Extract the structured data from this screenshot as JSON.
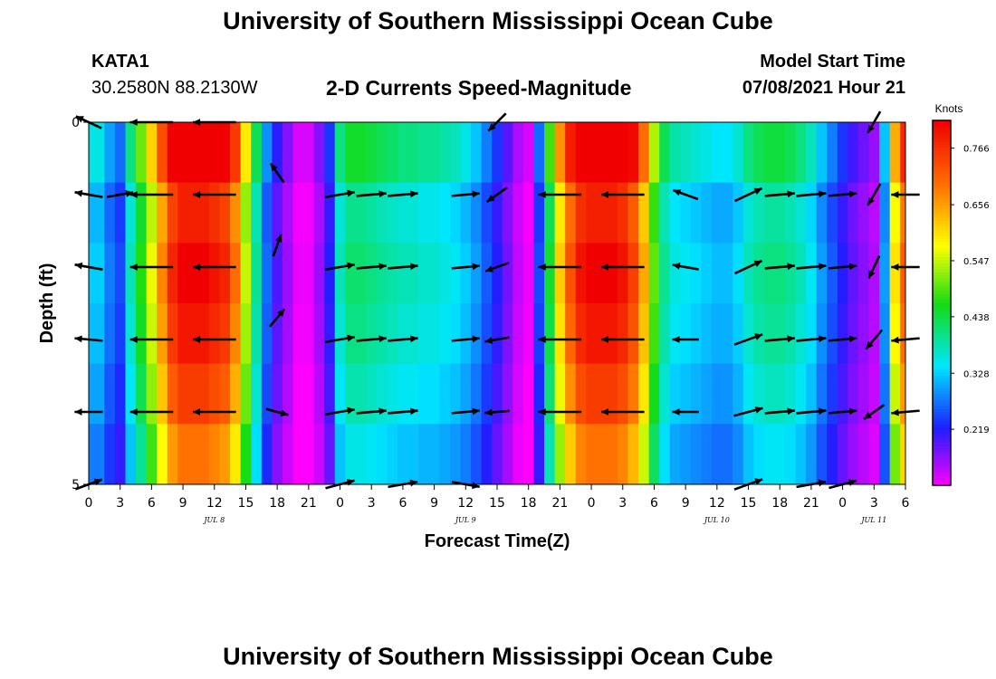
{
  "page": {
    "title": "University of Southern Mississippi Ocean Cube",
    "footer_title": "University of Southern Mississippi Ocean Cube",
    "station": "KATA1",
    "coordinates": "30.2580N  88.2130W",
    "plot_title": "2-D Currents Speed-Magnitude",
    "model_start_label": "Model Start Time",
    "model_start_value": "07/08/2021 Hour 21"
  },
  "chart_data": {
    "type": "heatmap",
    "title": "2-D Currents Speed-Magnitude",
    "xlabel": "Forecast Time(Z)",
    "ylabel": "Depth (ft)",
    "colorbar_label": "Knots",
    "colorbar_ticks": [
      "0.766",
      "0.656",
      "0.547",
      "0.438",
      "0.328",
      "0.219"
    ],
    "colorbar_values": [
      0.766,
      0.656,
      0.547,
      0.438,
      0.328,
      0.219
    ],
    "color_range": [
      0.11,
      0.82
    ],
    "y_ticks": [
      "0",
      "5"
    ],
    "ylim": [
      0,
      5
    ],
    "x_tick_labels": [
      "0",
      "3",
      "6",
      "9",
      "12",
      "15",
      "18",
      "21",
      "0",
      "3",
      "6",
      "9",
      "12",
      "15",
      "18",
      "21",
      "0",
      "3",
      "6",
      "9",
      "12",
      "15",
      "18",
      "21",
      "0",
      "3",
      "6"
    ],
    "date_labels": [
      {
        "text": "JUL 8",
        "at_tick": 4
      },
      {
        "text": "JUL 9",
        "at_tick": 12
      },
      {
        "text": "JUL 10",
        "at_tick": 20
      },
      {
        "text": "JUL 11",
        "at_tick": 25
      }
    ],
    "hours": [
      0,
      1,
      2,
      3,
      4,
      5,
      6,
      7,
      8,
      9,
      10,
      11,
      12,
      13,
      14,
      15,
      16,
      17,
      18,
      19,
      20,
      21,
      22,
      23,
      24,
      25,
      26,
      27,
      28,
      29,
      30,
      31,
      32,
      33,
      34,
      35,
      36,
      37,
      38,
      39,
      40,
      41,
      42,
      43,
      44,
      45,
      46,
      47,
      48,
      49,
      50,
      51,
      52,
      53,
      54,
      55,
      56,
      57,
      58,
      59,
      60,
      61,
      62,
      63,
      64,
      65,
      66,
      67,
      68,
      69,
      70,
      71,
      72,
      73,
      74,
      75,
      76,
      77,
      78
    ],
    "speed_profile": [
      0.33,
      0.33,
      0.28,
      0.25,
      0.38,
      0.47,
      0.57,
      0.68,
      0.78,
      0.82,
      0.82,
      0.82,
      0.8,
      0.78,
      0.7,
      0.55,
      0.4,
      0.27,
      0.2,
      0.16,
      0.12,
      0.12,
      0.16,
      0.22,
      0.38,
      0.42,
      0.42,
      0.41,
      0.4,
      0.39,
      0.38,
      0.38,
      0.37,
      0.37,
      0.36,
      0.35,
      0.33,
      0.3,
      0.26,
      0.22,
      0.18,
      0.14,
      0.12,
      0.25,
      0.45,
      0.62,
      0.73,
      0.8,
      0.82,
      0.82,
      0.82,
      0.8,
      0.75,
      0.65,
      0.5,
      0.4,
      0.36,
      0.35,
      0.34,
      0.33,
      0.32,
      0.32,
      0.34,
      0.38,
      0.4,
      0.41,
      0.41,
      0.4,
      0.38,
      0.35,
      0.3,
      0.26,
      0.22,
      0.19,
      0.17,
      0.15,
      0.3,
      0.6,
      0.72
    ],
    "depth_factors": [
      1.08,
      0.96,
      1.0,
      0.97,
      0.92,
      0.85
    ],
    "vectors": [
      {
        "hour": 0,
        "depth": 0.0,
        "angle": 155,
        "speed": 0.35
      },
      {
        "hour": 6,
        "depth": 0.0,
        "angle": 180,
        "speed": 0.78
      },
      {
        "hour": 12,
        "depth": 0.0,
        "angle": 180,
        "speed": 0.78
      },
      {
        "hour": 39,
        "depth": 0.0,
        "angle": 225,
        "speed": 0.25
      },
      {
        "hour": 75,
        "depth": 0.0,
        "angle": 240,
        "speed": 0.25
      },
      {
        "hour": 0,
        "depth": 1.0,
        "angle": 170,
        "speed": 0.35
      },
      {
        "hour": 3,
        "depth": 1.0,
        "angle": 10,
        "speed": 0.3
      },
      {
        "hour": 6,
        "depth": 1.0,
        "angle": 180,
        "speed": 0.78
      },
      {
        "hour": 12,
        "depth": 1.0,
        "angle": 180,
        "speed": 0.78
      },
      {
        "hour": 18,
        "depth": 0.7,
        "angle": 125,
        "speed": 0.2
      },
      {
        "hour": 24,
        "depth": 1.0,
        "angle": 10,
        "speed": 0.4
      },
      {
        "hour": 27,
        "depth": 1.0,
        "angle": 5,
        "speed": 0.4
      },
      {
        "hour": 30,
        "depth": 1.0,
        "angle": 5,
        "speed": 0.4
      },
      {
        "hour": 36,
        "depth": 1.0,
        "angle": 5,
        "speed": 0.35
      },
      {
        "hour": 39,
        "depth": 1.0,
        "angle": 215,
        "speed": 0.25
      },
      {
        "hour": 45,
        "depth": 1.0,
        "angle": 180,
        "speed": 0.78
      },
      {
        "hour": 51,
        "depth": 1.0,
        "angle": 180,
        "speed": 0.78
      },
      {
        "hour": 57,
        "depth": 1.0,
        "angle": 160,
        "speed": 0.3
      },
      {
        "hour": 63,
        "depth": 1.0,
        "angle": 25,
        "speed": 0.4
      },
      {
        "hour": 66,
        "depth": 1.0,
        "angle": 5,
        "speed": 0.4
      },
      {
        "hour": 69,
        "depth": 1.0,
        "angle": 5,
        "speed": 0.4
      },
      {
        "hour": 72,
        "depth": 1.0,
        "angle": 5,
        "speed": 0.35
      },
      {
        "hour": 75,
        "depth": 1.0,
        "angle": 240,
        "speed": 0.25
      },
      {
        "hour": 78,
        "depth": 1.0,
        "angle": 180,
        "speed": 0.35
      },
      {
        "hour": 0,
        "depth": 2.0,
        "angle": 170,
        "speed": 0.35
      },
      {
        "hour": 6,
        "depth": 2.0,
        "angle": 180,
        "speed": 0.78
      },
      {
        "hour": 12,
        "depth": 2.0,
        "angle": 180,
        "speed": 0.78
      },
      {
        "hour": 18,
        "depth": 1.7,
        "angle": 70,
        "speed": 0.2
      },
      {
        "hour": 24,
        "depth": 2.0,
        "angle": 10,
        "speed": 0.4
      },
      {
        "hour": 27,
        "depth": 2.0,
        "angle": 5,
        "speed": 0.4
      },
      {
        "hour": 30,
        "depth": 2.0,
        "angle": 5,
        "speed": 0.4
      },
      {
        "hour": 36,
        "depth": 2.0,
        "angle": 5,
        "speed": 0.35
      },
      {
        "hour": 39,
        "depth": 2.0,
        "angle": 200,
        "speed": 0.25
      },
      {
        "hour": 45,
        "depth": 2.0,
        "angle": 180,
        "speed": 0.78
      },
      {
        "hour": 51,
        "depth": 2.0,
        "angle": 180,
        "speed": 0.78
      },
      {
        "hour": 57,
        "depth": 2.0,
        "angle": 170,
        "speed": 0.3
      },
      {
        "hour": 63,
        "depth": 2.0,
        "angle": 25,
        "speed": 0.4
      },
      {
        "hour": 66,
        "depth": 2.0,
        "angle": 5,
        "speed": 0.4
      },
      {
        "hour": 69,
        "depth": 2.0,
        "angle": 5,
        "speed": 0.4
      },
      {
        "hour": 72,
        "depth": 2.0,
        "angle": 5,
        "speed": 0.35
      },
      {
        "hour": 75,
        "depth": 2.0,
        "angle": 245,
        "speed": 0.25
      },
      {
        "hour": 78,
        "depth": 2.0,
        "angle": 180,
        "speed": 0.35
      },
      {
        "hour": 0,
        "depth": 3.0,
        "angle": 175,
        "speed": 0.35
      },
      {
        "hour": 6,
        "depth": 3.0,
        "angle": 180,
        "speed": 0.78
      },
      {
        "hour": 12,
        "depth": 3.0,
        "angle": 180,
        "speed": 0.78
      },
      {
        "hour": 18,
        "depth": 2.7,
        "angle": 50,
        "speed": 0.2
      },
      {
        "hour": 24,
        "depth": 3.0,
        "angle": 10,
        "speed": 0.4
      },
      {
        "hour": 27,
        "depth": 3.0,
        "angle": 5,
        "speed": 0.4
      },
      {
        "hour": 30,
        "depth": 3.0,
        "angle": 5,
        "speed": 0.4
      },
      {
        "hour": 36,
        "depth": 3.0,
        "angle": 5,
        "speed": 0.35
      },
      {
        "hour": 39,
        "depth": 3.0,
        "angle": 190,
        "speed": 0.25
      },
      {
        "hour": 45,
        "depth": 3.0,
        "angle": 180,
        "speed": 0.78
      },
      {
        "hour": 51,
        "depth": 3.0,
        "angle": 180,
        "speed": 0.78
      },
      {
        "hour": 57,
        "depth": 3.0,
        "angle": 180,
        "speed": 0.3
      },
      {
        "hour": 63,
        "depth": 3.0,
        "angle": 20,
        "speed": 0.4
      },
      {
        "hour": 66,
        "depth": 3.0,
        "angle": 5,
        "speed": 0.4
      },
      {
        "hour": 69,
        "depth": 3.0,
        "angle": 5,
        "speed": 0.4
      },
      {
        "hour": 72,
        "depth": 3.0,
        "angle": 5,
        "speed": 0.35
      },
      {
        "hour": 75,
        "depth": 3.0,
        "angle": 230,
        "speed": 0.25
      },
      {
        "hour": 78,
        "depth": 3.0,
        "angle": 185,
        "speed": 0.35
      },
      {
        "hour": 0,
        "depth": 4.0,
        "angle": 180,
        "speed": 0.35
      },
      {
        "hour": 6,
        "depth": 4.0,
        "angle": 180,
        "speed": 0.78
      },
      {
        "hour": 12,
        "depth": 4.0,
        "angle": 180,
        "speed": 0.78
      },
      {
        "hour": 18,
        "depth": 4.0,
        "angle": 345,
        "speed": 0.2
      },
      {
        "hour": 24,
        "depth": 4.0,
        "angle": 10,
        "speed": 0.4
      },
      {
        "hour": 27,
        "depth": 4.0,
        "angle": 5,
        "speed": 0.4
      },
      {
        "hour": 30,
        "depth": 4.0,
        "angle": 5,
        "speed": 0.4
      },
      {
        "hour": 36,
        "depth": 4.0,
        "angle": 5,
        "speed": 0.35
      },
      {
        "hour": 39,
        "depth": 4.0,
        "angle": 185,
        "speed": 0.25
      },
      {
        "hour": 45,
        "depth": 4.0,
        "angle": 180,
        "speed": 0.78
      },
      {
        "hour": 51,
        "depth": 4.0,
        "angle": 180,
        "speed": 0.78
      },
      {
        "hour": 57,
        "depth": 4.0,
        "angle": 180,
        "speed": 0.3
      },
      {
        "hour": 63,
        "depth": 4.0,
        "angle": 15,
        "speed": 0.4
      },
      {
        "hour": 66,
        "depth": 4.0,
        "angle": 5,
        "speed": 0.4
      },
      {
        "hour": 69,
        "depth": 4.0,
        "angle": 5,
        "speed": 0.4
      },
      {
        "hour": 72,
        "depth": 4.0,
        "angle": 5,
        "speed": 0.35
      },
      {
        "hour": 75,
        "depth": 4.0,
        "angle": 215,
        "speed": 0.25
      },
      {
        "hour": 78,
        "depth": 4.0,
        "angle": 185,
        "speed": 0.35
      },
      {
        "hour": 0,
        "depth": 5.0,
        "angle": 20,
        "speed": 0.35
      },
      {
        "hour": 24,
        "depth": 5.0,
        "angle": 15,
        "speed": 0.4
      },
      {
        "hour": 30,
        "depth": 5.0,
        "angle": 10,
        "speed": 0.4
      },
      {
        "hour": 36,
        "depth": 5.0,
        "angle": 350,
        "speed": 0.35
      },
      {
        "hour": 63,
        "depth": 5.0,
        "angle": 20,
        "speed": 0.4
      },
      {
        "hour": 69,
        "depth": 5.0,
        "angle": 10,
        "speed": 0.4
      },
      {
        "hour": 72,
        "depth": 5.0,
        "angle": 15,
        "speed": 0.35
      }
    ]
  }
}
